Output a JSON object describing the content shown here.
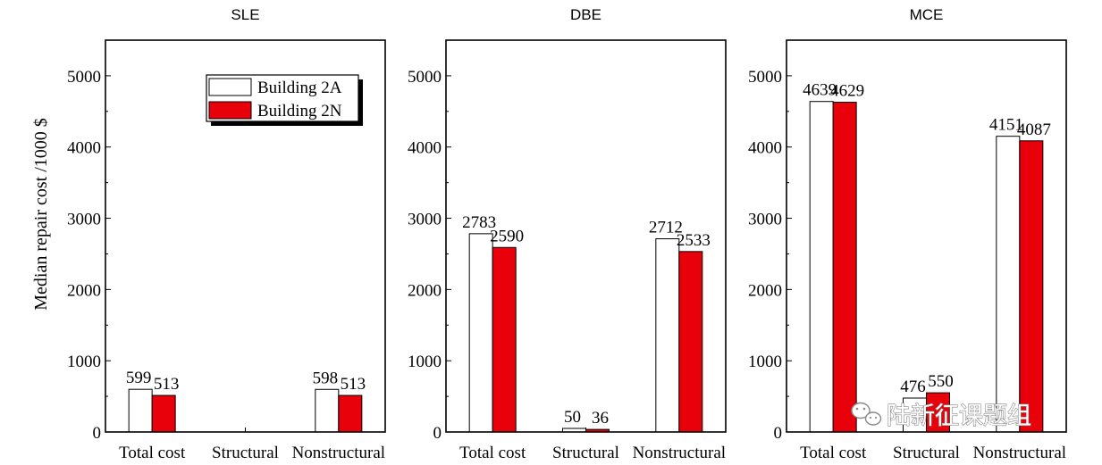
{
  "y_axis_label": "Median repair cost /1000 $",
  "watermark": "陆新征课题组",
  "colors": {
    "building_2a": "#ffffff",
    "building_2n": "#e8000b",
    "frame": "#000000"
  },
  "chart_data": [
    {
      "type": "bar",
      "title": "SLE",
      "categories": [
        "Total cost",
        "Structural",
        "Nonstructural"
      ],
      "ylim": [
        0,
        5500
      ],
      "yticks": [
        0,
        1000,
        2000,
        3000,
        4000,
        5000
      ],
      "legend": {
        "position": "top-right"
      },
      "series": [
        {
          "name": "Building 2A",
          "values": [
            599,
            null,
            598
          ],
          "labels": [
            "599",
            "",
            "598"
          ]
        },
        {
          "name": "Building 2N",
          "values": [
            513,
            null,
            513
          ],
          "labels": [
            "513",
            "",
            "513"
          ]
        }
      ]
    },
    {
      "type": "bar",
      "title": "DBE",
      "categories": [
        "Total cost",
        "Structural",
        "Nonstructural"
      ],
      "ylim": [
        0,
        5500
      ],
      "yticks": [
        0,
        1000,
        2000,
        3000,
        4000,
        5000
      ],
      "series": [
        {
          "name": "Building 2A",
          "values": [
            2783,
            50,
            2712
          ],
          "labels": [
            "2783",
            "50",
            "2712"
          ]
        },
        {
          "name": "Building 2N",
          "values": [
            2590,
            36,
            2533
          ],
          "labels": [
            "2590",
            "36",
            "2533"
          ]
        }
      ]
    },
    {
      "type": "bar",
      "title": "MCE",
      "categories": [
        "Total cost",
        "Structural",
        "Nonstructural"
      ],
      "ylim": [
        0,
        5500
      ],
      "yticks": [
        0,
        1000,
        2000,
        3000,
        4000,
        5000
      ],
      "series": [
        {
          "name": "Building 2A",
          "values": [
            4639,
            476,
            4151
          ],
          "labels": [
            "4639",
            "476",
            "4151"
          ]
        },
        {
          "name": "Building 2N",
          "values": [
            4629,
            550,
            4087
          ],
          "labels": [
            "4629",
            "550",
            "4087"
          ]
        }
      ]
    }
  ]
}
